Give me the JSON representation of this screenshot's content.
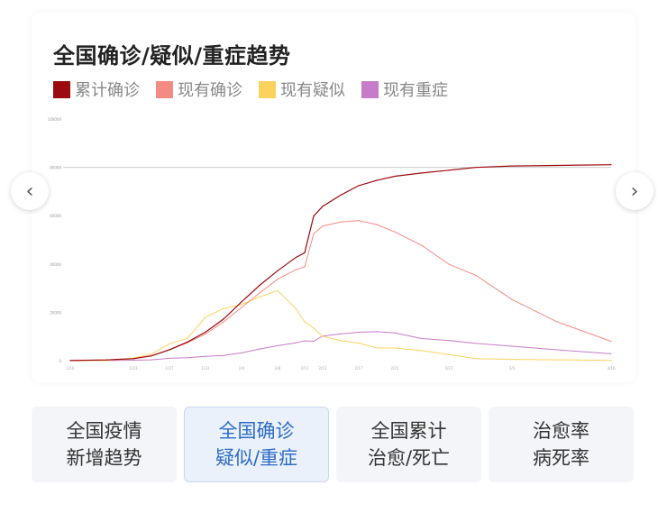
{
  "chart_data": {
    "type": "line",
    "title": "全国确诊/疑似/重症趋势",
    "x": [
      "1/16",
      "1/20",
      "1/23",
      "1/25",
      "1/27",
      "1/29",
      "1/31",
      "2/2",
      "2/4",
      "2/6",
      "2/8",
      "2/10",
      "2/11",
      "2/12",
      "2/13",
      "2/15",
      "2/17",
      "2/19",
      "2/21",
      "2/24",
      "2/27",
      "3/1",
      "3/5",
      "3/10",
      "3/16"
    ],
    "series": [
      {
        "name": "累计确诊",
        "color": "#9b0a0e",
        "values": [
          45,
          291,
          830,
          1975,
          4515,
          7711,
          11791,
          17205,
          24324,
          31161,
          37198,
          42638,
          44653,
          59804,
          63851,
          68500,
          72436,
          74576,
          76288,
          77658,
          78824,
          79968,
          80552,
          80778,
          81077
        ]
      },
      {
        "name": "现有确诊",
        "color": "#f38b82",
        "values": [
          41,
          270,
          760,
          1900,
          4400,
          7400,
          11000,
          16000,
          22000,
          28000,
          33700,
          37600,
          38800,
          52500,
          55700,
          57400,
          58000,
          56300,
          53300,
          47700,
          39900,
          35300,
          25300,
          16100,
          8000
        ]
      },
      {
        "name": "现有疑似",
        "color": "#fcd25e",
        "values": [
          0,
          54,
          1072,
          2684,
          6973,
          9239,
          17988,
          21558,
          23260,
          26359,
          28942,
          21675,
          16067,
          13435,
          10109,
          8228,
          7264,
          5248,
          5206,
          4148,
          2491,
          851,
          522,
          349,
          128
        ]
      },
      {
        "name": "现有重症",
        "color": "#c77cc9",
        "values": [
          5,
          35,
          177,
          324,
          976,
          1239,
          1795,
          2110,
          3219,
          4821,
          6188,
          7333,
          8204,
          8030,
          10204,
          11053,
          11741,
          11977,
          11477,
          9126,
          8346,
          7110,
          5952,
          4492,
          2830
        ]
      }
    ],
    "ylim": [
      0,
      100000
    ],
    "yticks": [
      "0",
      "20000",
      "40000",
      "60000",
      "80000",
      "100000"
    ],
    "grid": "reference line at 80000",
    "legend": "top-left"
  },
  "nav": {
    "prev": "‹",
    "next": "›"
  },
  "tabs": [
    {
      "line1": "全国疫情",
      "line2": "新增趋势",
      "active": false
    },
    {
      "line1": "全国确诊",
      "line2": "疑似/重症",
      "active": true
    },
    {
      "line1": "全国累计",
      "line2": "治愈/死亡",
      "active": false
    },
    {
      "line1": "治愈率",
      "line2": "病死率",
      "active": false
    }
  ]
}
